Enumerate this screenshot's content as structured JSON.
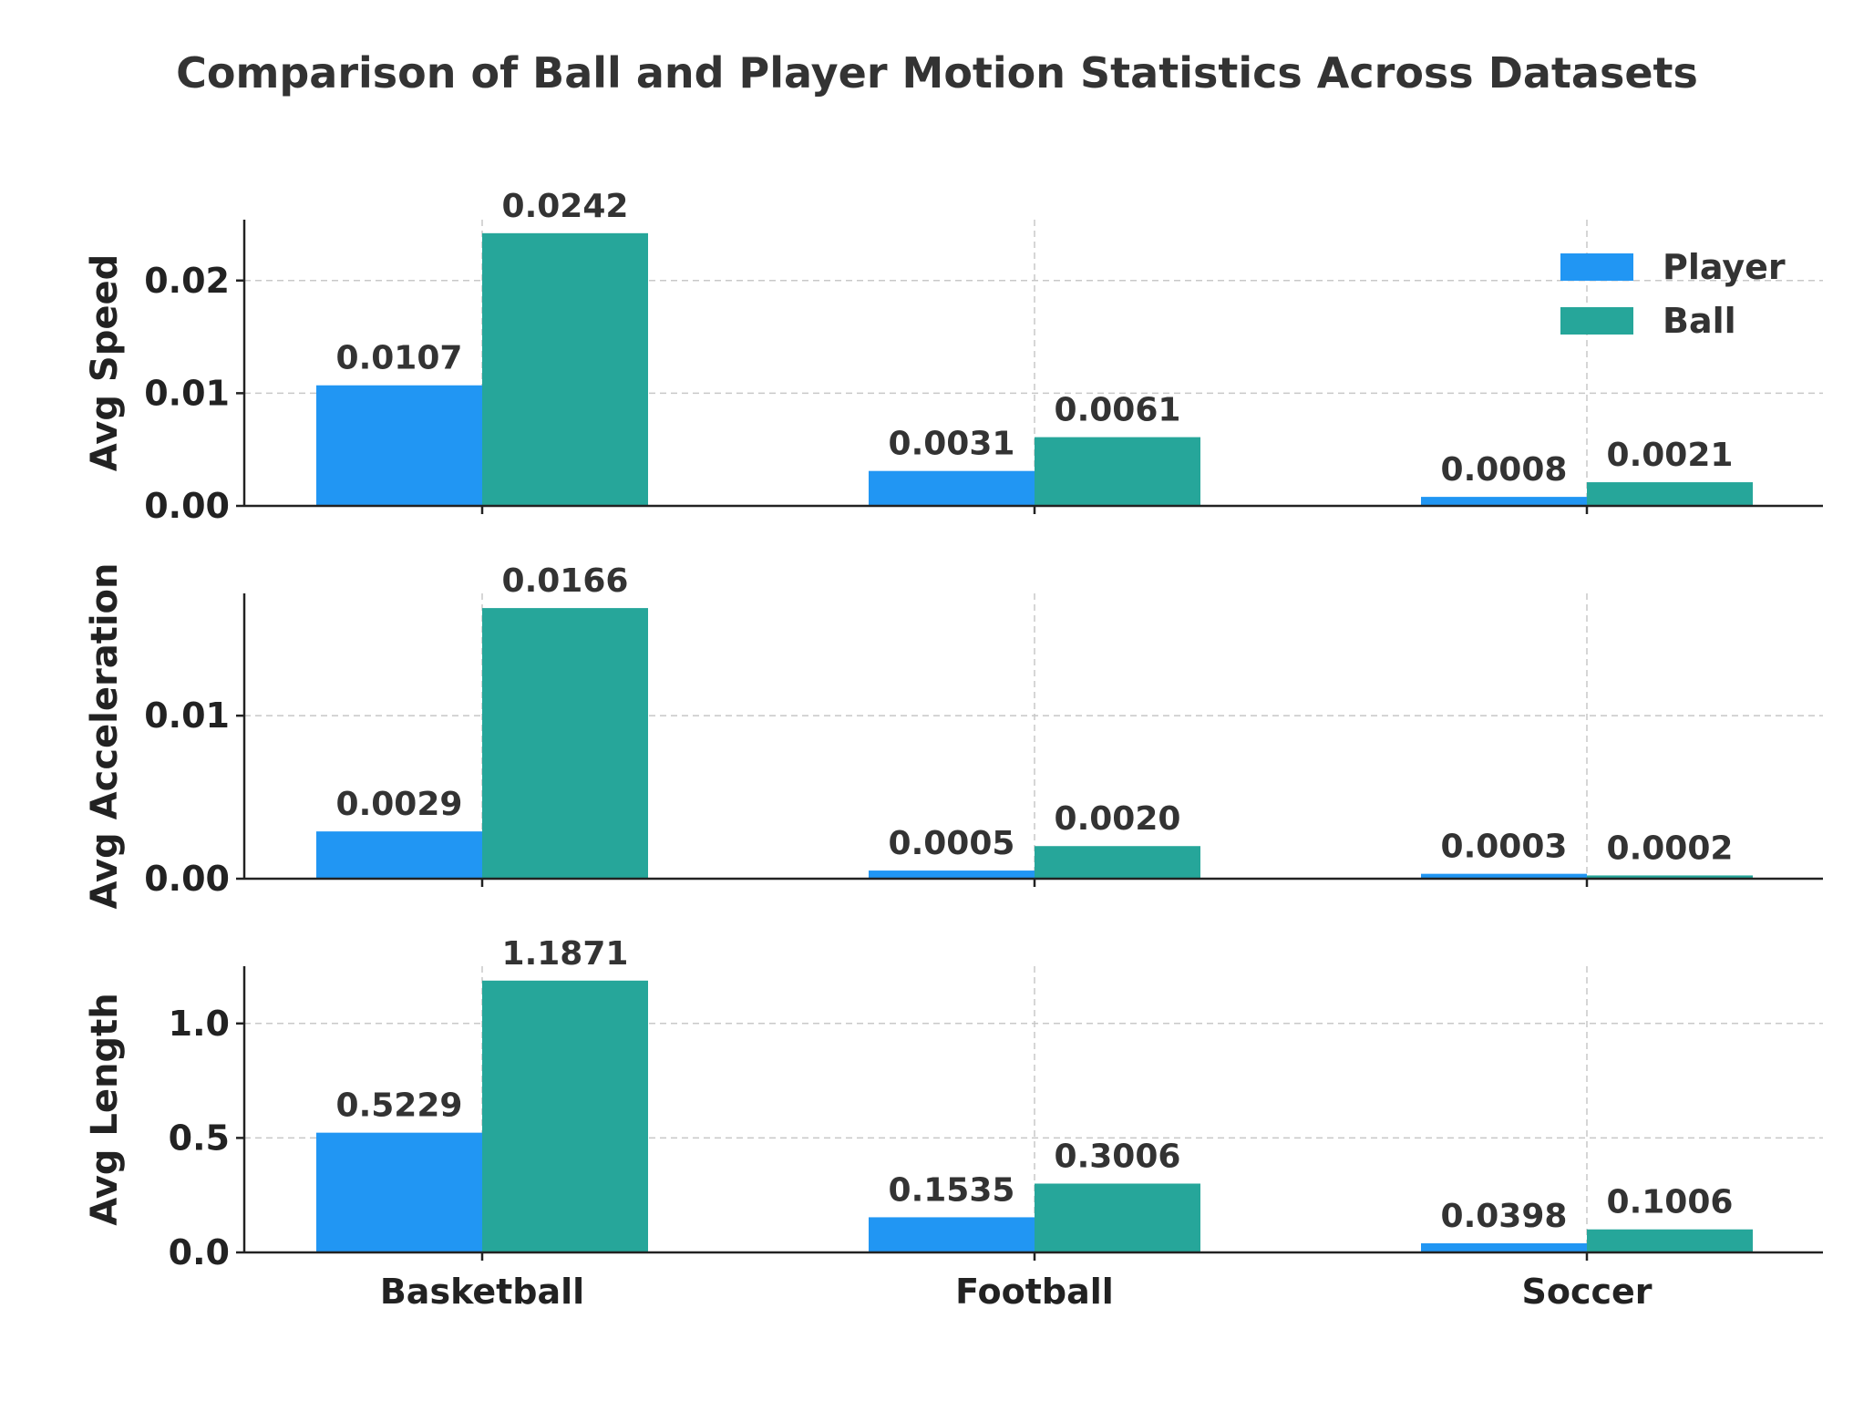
{
  "title": "Comparison of Ball and Player Motion Statistics Across Datasets",
  "chart_data": {
    "type": "bar",
    "title": "Comparison of Ball and Player Motion Statistics Across Datasets",
    "categories": [
      "Basketball",
      "Football",
      "Soccer"
    ],
    "legend": {
      "placement": "top-right",
      "entries": [
        {
          "name": "Player",
          "color": "#2196F3"
        },
        {
          "name": "Ball",
          "color": "#26A69A"
        }
      ]
    },
    "grid": true,
    "panels": [
      {
        "key": "speed",
        "ylabel": "Avg Speed",
        "ylim": [
          0,
          0.0254
        ],
        "yticks": [
          0.0,
          0.01,
          0.02
        ],
        "ytick_labels": [
          "0.00",
          "0.01",
          "0.02"
        ],
        "series": [
          {
            "name": "Player",
            "values": [
              0.0107,
              0.0031,
              0.0008
            ],
            "labels": [
              "0.0107",
              "0.0031",
              "0.0008"
            ]
          },
          {
            "name": "Ball",
            "values": [
              0.0242,
              0.0061,
              0.0021
            ],
            "labels": [
              "0.0242",
              "0.0061",
              "0.0021"
            ]
          }
        ]
      },
      {
        "key": "acceleration",
        "ylabel": "Avg Acceleration",
        "ylim": [
          0,
          0.0175
        ],
        "yticks": [
          0.0,
          0.01
        ],
        "ytick_labels": [
          "0.00",
          "0.01"
        ],
        "series": [
          {
            "name": "Player",
            "values": [
              0.0029,
              0.0005,
              0.0003
            ],
            "labels": [
              "0.0029",
              "0.0005",
              "0.0003"
            ]
          },
          {
            "name": "Ball",
            "values": [
              0.0166,
              0.002,
              0.0002
            ],
            "labels": [
              "0.0166",
              "0.0020",
              "0.0002"
            ]
          }
        ]
      },
      {
        "key": "length",
        "ylabel": "Avg Length",
        "ylim": [
          0,
          1.25
        ],
        "yticks": [
          0.0,
          0.5,
          1.0
        ],
        "ytick_labels": [
          "0.0",
          "0.5",
          "1.0"
        ],
        "series": [
          {
            "name": "Player",
            "values": [
              0.5229,
              0.1535,
              0.0398
            ],
            "labels": [
              "0.5229",
              "0.1535",
              "0.0398"
            ]
          },
          {
            "name": "Ball",
            "values": [
              1.1871,
              0.3006,
              0.1006
            ],
            "labels": [
              "1.1871",
              "0.3006",
              "0.1006"
            ]
          }
        ]
      }
    ]
  }
}
